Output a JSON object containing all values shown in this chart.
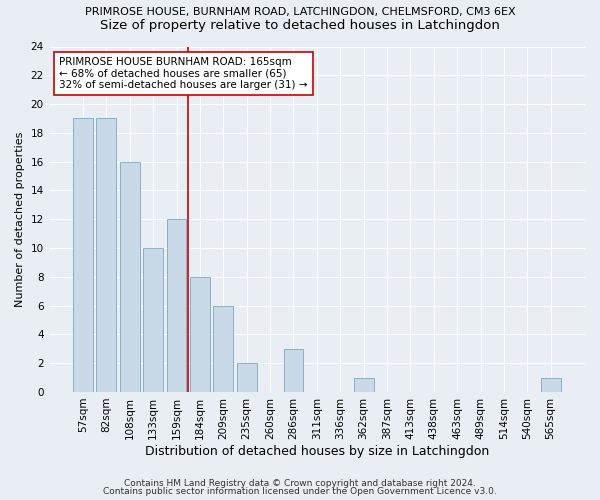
{
  "title_line1": "PRIMROSE HOUSE, BURNHAM ROAD, LATCHINGDON, CHELMSFORD, CM3 6EX",
  "title_line2": "Size of property relative to detached houses in Latchingdon",
  "xlabel": "Distribution of detached houses by size in Latchingdon",
  "ylabel": "Number of detached properties",
  "categories": [
    "57sqm",
    "82sqm",
    "108sqm",
    "133sqm",
    "159sqm",
    "184sqm",
    "209sqm",
    "235sqm",
    "260sqm",
    "286sqm",
    "311sqm",
    "336sqm",
    "362sqm",
    "387sqm",
    "413sqm",
    "438sqm",
    "463sqm",
    "489sqm",
    "514sqm",
    "540sqm",
    "565sqm"
  ],
  "values": [
    19,
    19,
    16,
    10,
    12,
    8,
    6,
    2,
    0,
    3,
    0,
    0,
    1,
    0,
    0,
    0,
    0,
    0,
    0,
    0,
    1
  ],
  "bar_color": "#c9d9e8",
  "bar_edge_color": "#7aaabb",
  "vline_x_index": 4.5,
  "vline_color": "#cc0000",
  "annotation_text": "PRIMROSE HOUSE BURNHAM ROAD: 165sqm\n← 68% of detached houses are smaller (65)\n32% of semi-detached houses are larger (31) →",
  "annotation_box_color": "#ffffff",
  "annotation_box_edge_color": "#cc0000",
  "ylim": [
    0,
    24
  ],
  "yticks": [
    0,
    2,
    4,
    6,
    8,
    10,
    12,
    14,
    16,
    18,
    20,
    22,
    24
  ],
  "footer_line1": "Contains HM Land Registry data © Crown copyright and database right 2024.",
  "footer_line2": "Contains public sector information licensed under the Open Government Licence v3.0.",
  "background_color": "#e8eef4",
  "grid_color": "#ffffff",
  "title1_fontsize": 8.0,
  "title2_fontsize": 9.5,
  "xlabel_fontsize": 9.0,
  "ylabel_fontsize": 8.0,
  "tick_fontsize": 7.5,
  "annotation_fontsize": 7.5,
  "footer_fontsize": 6.5
}
